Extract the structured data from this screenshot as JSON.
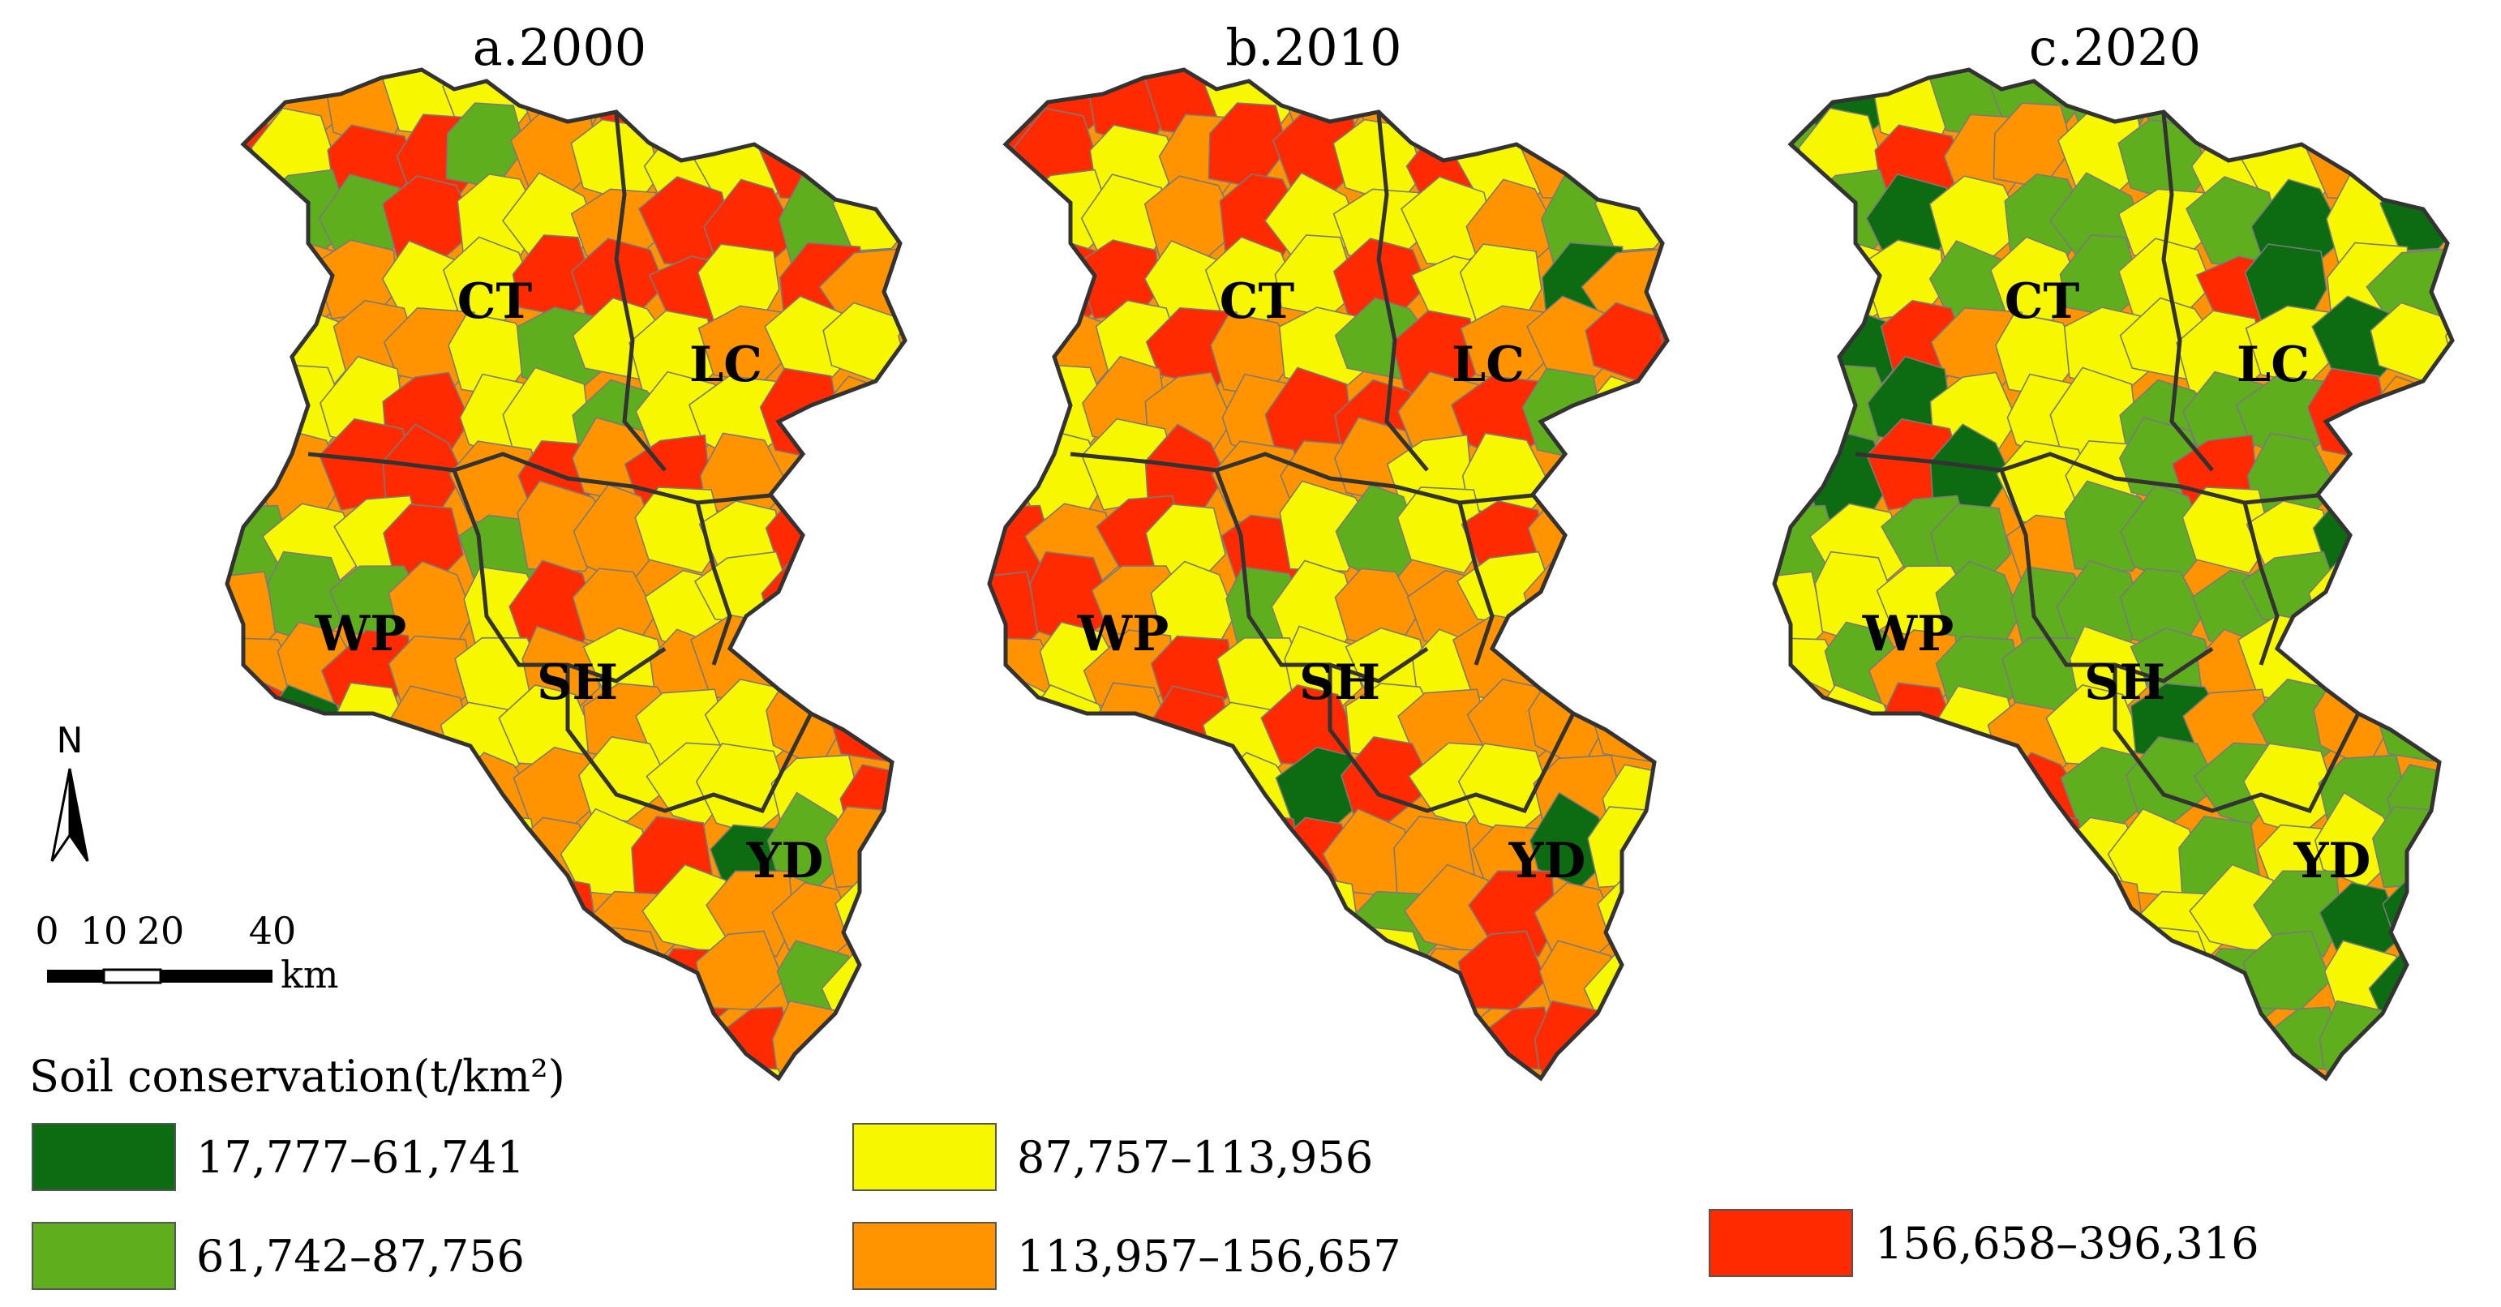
{
  "palette": {
    "dark_green": "#0d6b12",
    "green": "#5fae1e",
    "yellow": "#f7f700",
    "orange": "#ff9300",
    "red": "#ff2a00",
    "county_border": "#7a7a7a",
    "district_border": "#333333"
  },
  "panels": [
    {
      "id": "a",
      "title": "a.2000"
    },
    {
      "id": "b",
      "title": "b.2010"
    },
    {
      "id": "c",
      "title": "c.2020"
    }
  ],
  "regions": [
    "CT",
    "LC",
    "WP",
    "SH",
    "YD"
  ],
  "north_arrow": {
    "label": "N"
  },
  "scale_bar": {
    "ticks": [
      "0",
      "10",
      "20",
      "40"
    ],
    "unit": "km"
  },
  "legend": {
    "title": "Soil conservation(t/km²)",
    "classes": [
      {
        "label": "17,777–61,741",
        "color_key": "dark_green"
      },
      {
        "label": "61,742–87,756",
        "color_key": "green"
      },
      {
        "label": "87,757–113,956",
        "color_key": "yellow"
      },
      {
        "label": "113,957–156,657",
        "color_key": "orange"
      },
      {
        "label": "156,658–396,316",
        "color_key": "red"
      }
    ]
  },
  "class_pattern": {
    "a": [
      "orange",
      "red",
      "yellow",
      "orange",
      "green",
      "yellow",
      "orange",
      "red",
      "yellow",
      "orange",
      "red",
      "orange",
      "yellow",
      "red",
      "orange",
      "green",
      "red",
      "yellow",
      "orange",
      "yellow",
      "red",
      "orange",
      "yellow",
      "dark_green",
      "orange",
      "red",
      "yellow",
      "orange",
      "red",
      "yellow",
      "orange",
      "green",
      "yellow",
      "orange",
      "red",
      "orange"
    ],
    "b": [
      "orange",
      "red",
      "yellow",
      "orange",
      "yellow",
      "orange",
      "red",
      "orange",
      "yellow",
      "red",
      "orange",
      "yellow",
      "red",
      "orange",
      "yellow",
      "orange",
      "red",
      "yellow",
      "orange",
      "green",
      "orange",
      "red",
      "yellow",
      "orange",
      "yellow",
      "red",
      "orange",
      "dark_green",
      "yellow",
      "orange",
      "red",
      "yellow",
      "orange",
      "orange",
      "yellow",
      "red"
    ],
    "c": [
      "yellow",
      "green",
      "green",
      "yellow",
      "dark_green",
      "green",
      "yellow",
      "orange",
      "green",
      "yellow",
      "green",
      "dark_green",
      "yellow",
      "green",
      "orange",
      "yellow",
      "green",
      "red",
      "yellow",
      "green",
      "yellow",
      "green",
      "dark_green",
      "yellow",
      "green",
      "orange",
      "yellow",
      "green",
      "yellow",
      "red",
      "green",
      "yellow",
      "green",
      "orange",
      "yellow",
      "green"
    ]
  }
}
